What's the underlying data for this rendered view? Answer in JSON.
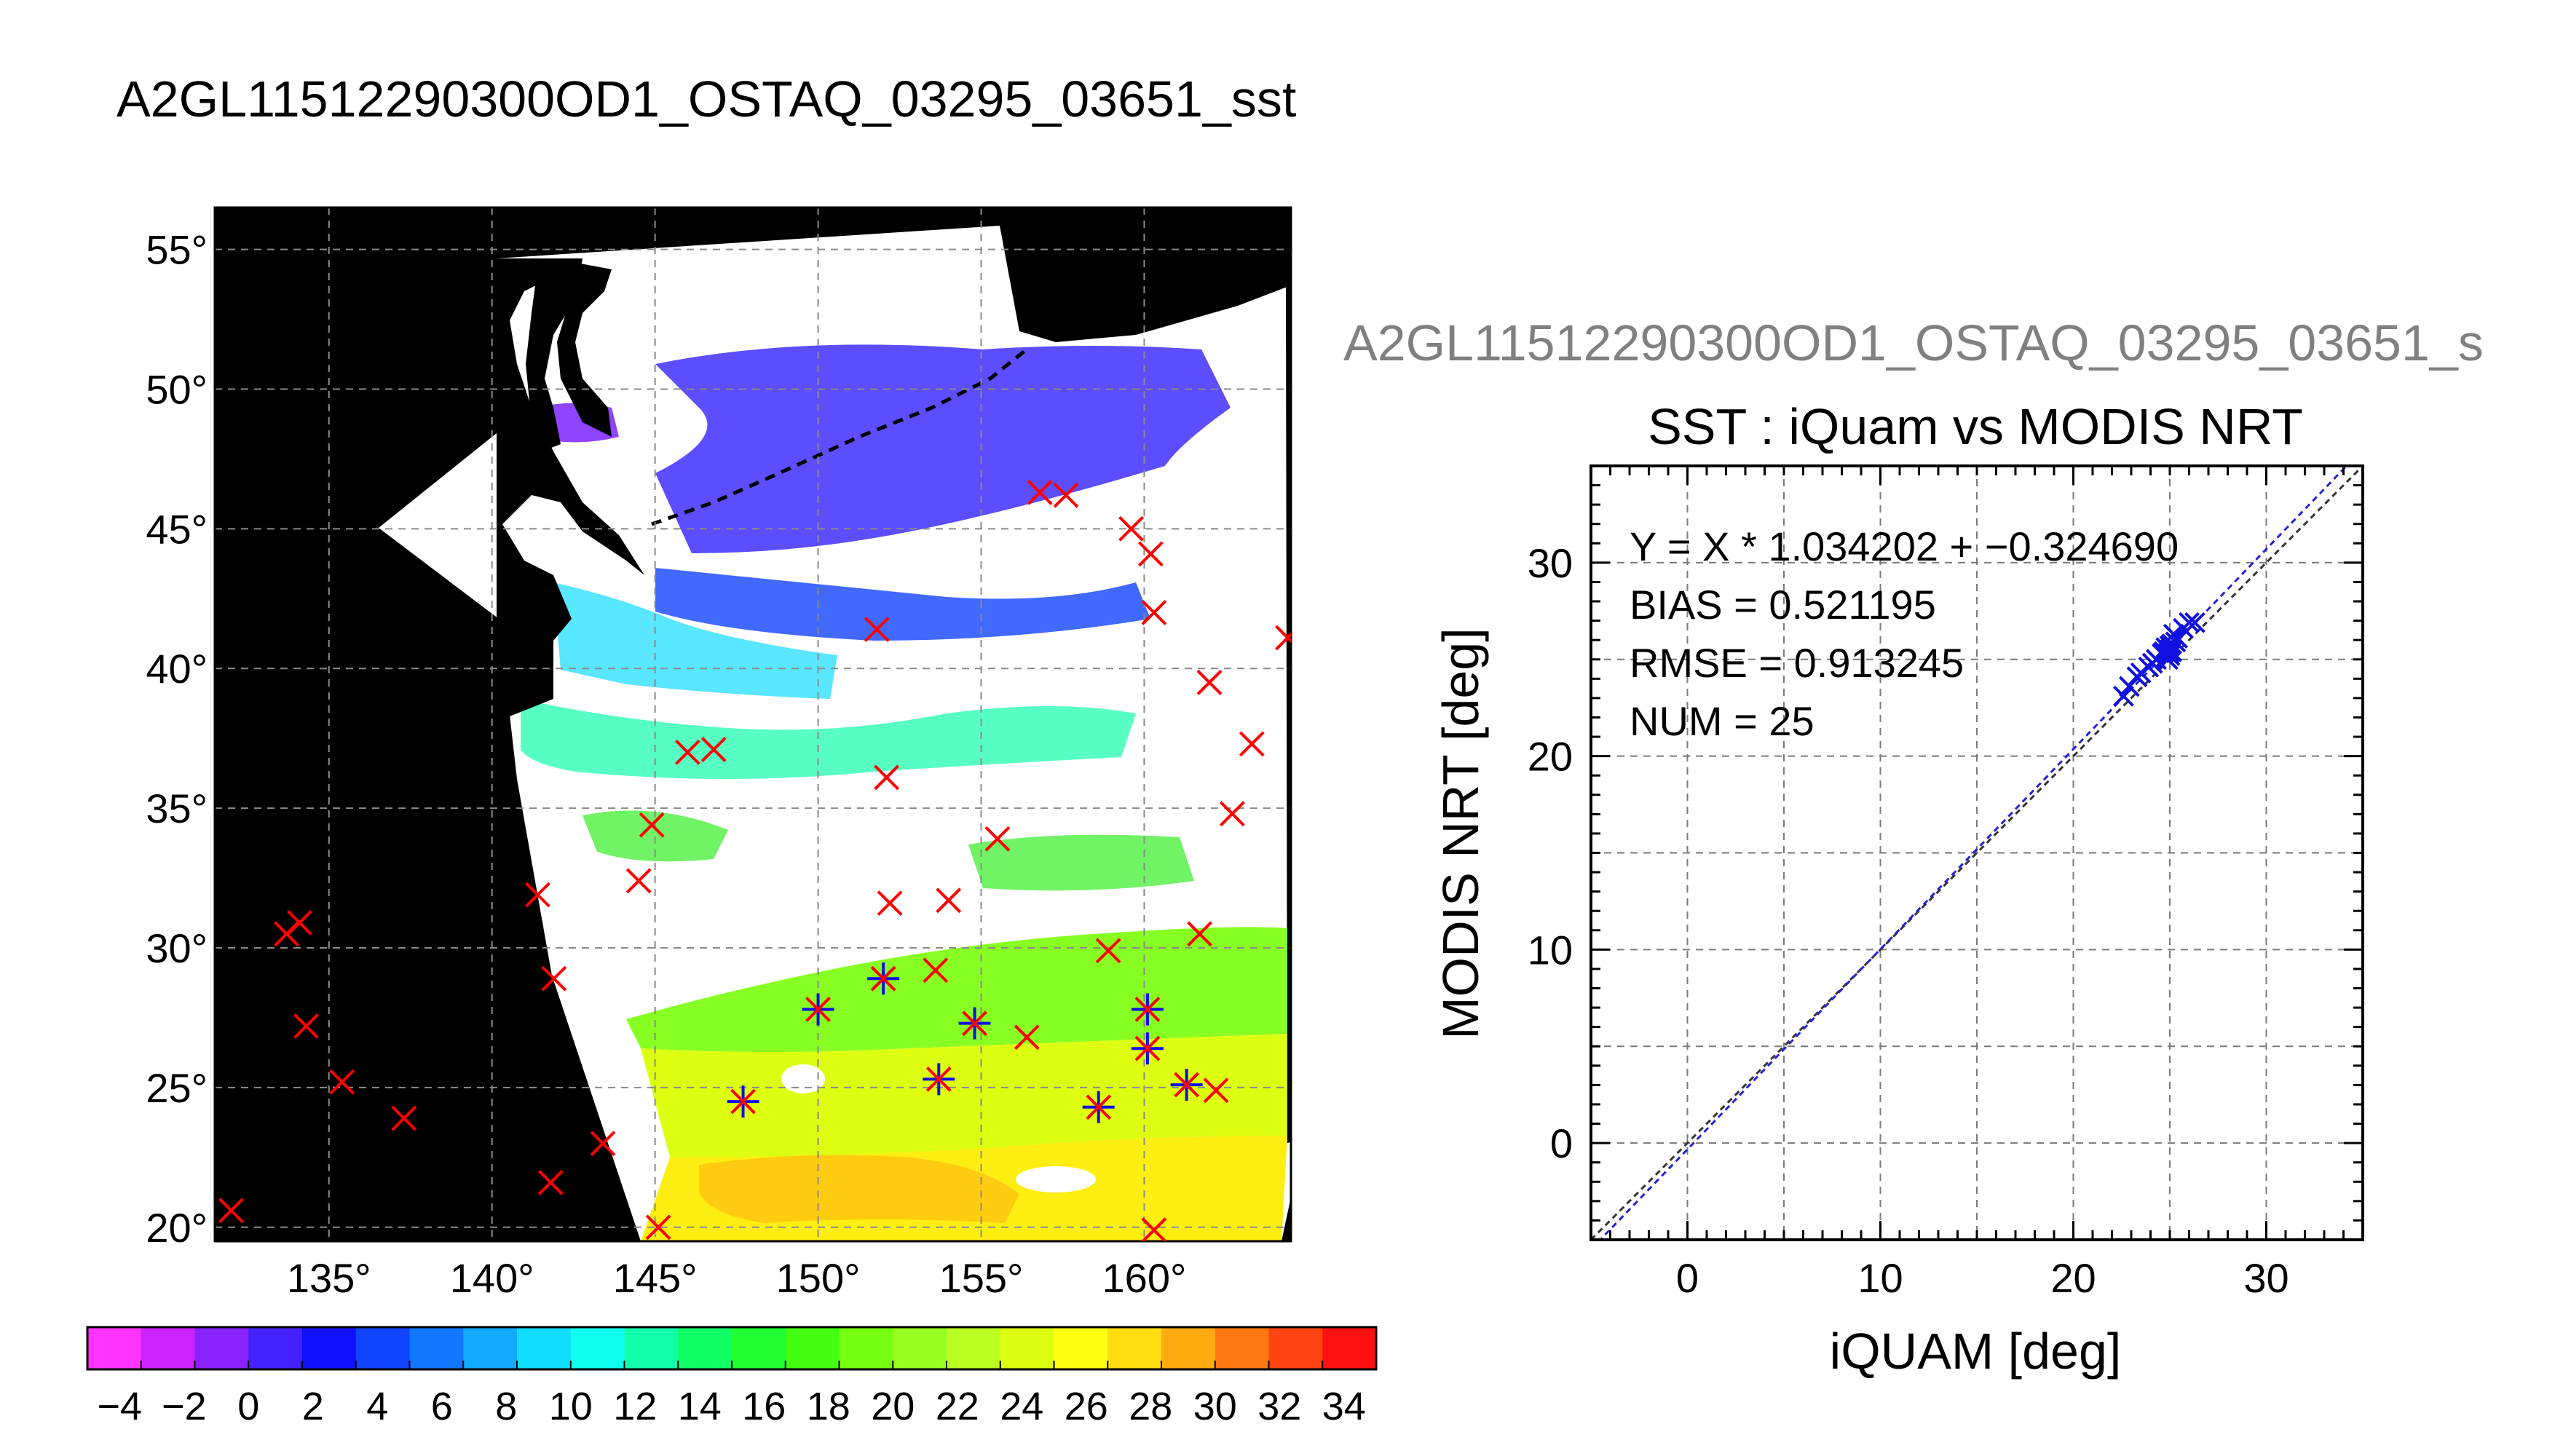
{
  "page_title": "A2GL11512290300OD1_OSTAQ_03295_03651_sst",
  "scatter_header": "A2GL11512290300OD1_OSTAQ_03295_03651_s",
  "colors": {
    "red_marker": "#ff0000",
    "blue_marker": "#1010e0",
    "land": "#000000",
    "cloud": "#ffffff",
    "colorbar": [
      "#ff33ff",
      "#cc22ff",
      "#8822ff",
      "#4422ff",
      "#1111ff",
      "#1144ff",
      "#1177ff",
      "#11aaff",
      "#11ddff",
      "#11ffee",
      "#11ffaa",
      "#11ff66",
      "#22ff33",
      "#44ff11",
      "#77ff11",
      "#99ff22",
      "#bbff22",
      "#ddff11",
      "#ffff11",
      "#ffdd11",
      "#ffaa11",
      "#ff7711",
      "#ff4411",
      "#ff1111"
    ]
  },
  "chart_data": [
    {
      "type": "heatmap",
      "subtype": "map",
      "lat_ticks": [
        "20°",
        "25°",
        "30°",
        "35°",
        "40°",
        "45°",
        "50°",
        "55°"
      ],
      "lon_ticks": [
        "135°",
        "140°",
        "145°",
        "150°",
        "155°",
        "160°"
      ],
      "lon_range": [
        131.5,
        164.5
      ],
      "lat_range": [
        19.5,
        56.5
      ],
      "colorbar": {
        "min": -5,
        "max": 35,
        "tick_labels": [
          "−4",
          "−2",
          "0",
          "2",
          "4",
          "6",
          "8",
          "10",
          "12",
          "14",
          "16",
          "18",
          "20",
          "22",
          "24",
          "26",
          "28",
          "30",
          "32",
          "34"
        ]
      },
      "red_x_markers": [
        [
          156.8,
          46.3
        ],
        [
          157.6,
          46.2
        ],
        [
          159.6,
          45.0
        ],
        [
          160.2,
          44.1
        ],
        [
          160.3,
          42.0
        ],
        [
          151.8,
          41.4
        ],
        [
          162.0,
          39.5
        ],
        [
          164.4,
          41.1
        ],
        [
          163.3,
          37.3
        ],
        [
          146.0,
          37.0
        ],
        [
          146.8,
          37.1
        ],
        [
          152.1,
          36.1
        ],
        [
          162.7,
          34.8
        ],
        [
          144.9,
          34.4
        ],
        [
          155.5,
          33.9
        ],
        [
          144.5,
          32.4
        ],
        [
          152.2,
          31.6
        ],
        [
          154.0,
          31.7
        ],
        [
          141.4,
          31.9
        ],
        [
          133.7,
          30.5
        ],
        [
          134.1,
          30.9
        ],
        [
          161.7,
          30.5
        ],
        [
          158.9,
          29.9
        ],
        [
          153.6,
          29.2
        ],
        [
          141.9,
          28.9
        ],
        [
          152.0,
          28.9
        ],
        [
          156.4,
          26.8
        ],
        [
          134.3,
          27.2
        ],
        [
          135.4,
          25.2
        ],
        [
          137.3,
          23.9
        ],
        [
          143.4,
          23.0
        ],
        [
          141.8,
          21.6
        ],
        [
          132.0,
          20.6
        ],
        [
          145.1,
          20.0
        ],
        [
          160.3,
          19.9
        ],
        [
          162.2,
          24.9
        ]
      ],
      "matched_markers": [
        [
          150.0,
          27.8
        ],
        [
          152.0,
          28.9
        ],
        [
          154.8,
          27.3
        ],
        [
          153.7,
          25.3
        ],
        [
          147.7,
          24.5
        ],
        [
          158.6,
          24.3
        ],
        [
          160.1,
          27.8
        ],
        [
          160.1,
          26.4
        ],
        [
          161.3,
          25.1
        ]
      ]
    },
    {
      "type": "scatter",
      "title": "SST : iQuam vs MODIS NRT",
      "xlabel": "iQUAM [deg]",
      "ylabel": "MODIS NRT [deg]",
      "xlim": [
        -5,
        35
      ],
      "ylim": [
        -5,
        35
      ],
      "xticks": [
        0,
        10,
        20,
        30
      ],
      "yticks": [
        0,
        10,
        20,
        30
      ],
      "annotations": [
        "Y = X * 1.034202 + −0.324690",
        "BIAS = 0.521195",
        "RMSE = 0.913245",
        "NUM = 25"
      ],
      "fit": {
        "slope": 1.034202,
        "intercept": -0.32469
      },
      "grid": true,
      "points": [
        [
          22.6,
          23.1
        ],
        [
          22.9,
          23.6
        ],
        [
          23.3,
          24.1
        ],
        [
          23.9,
          24.6
        ],
        [
          24.3,
          25.0
        ],
        [
          24.6,
          25.3
        ],
        [
          24.8,
          25.6
        ],
        [
          25.0,
          25.5
        ],
        [
          25.0,
          25.2
        ],
        [
          24.9,
          25.0
        ],
        [
          25.1,
          25.8
        ],
        [
          25.2,
          26.3
        ],
        [
          25.7,
          26.6
        ],
        [
          26.0,
          26.9
        ],
        [
          26.3,
          26.9
        ],
        [
          24.7,
          25.4
        ],
        [
          25.0,
          25.7
        ],
        [
          24.8,
          25.1
        ],
        [
          25.1,
          25.4
        ],
        [
          23.5,
          24.3
        ],
        [
          24.1,
          24.8
        ],
        [
          25.3,
          25.9
        ],
        [
          25.4,
          26.1
        ],
        [
          24.95,
          25.35
        ],
        [
          25.05,
          25.45
        ]
      ]
    }
  ]
}
